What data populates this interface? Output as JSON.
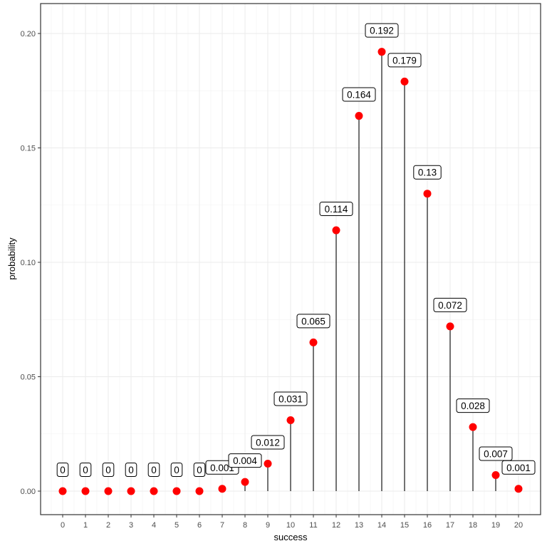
{
  "chart_data": {
    "type": "lollipop",
    "xlabel": "success",
    "ylabel": "probability",
    "x": [
      0,
      1,
      2,
      3,
      4,
      5,
      6,
      7,
      8,
      9,
      10,
      11,
      12,
      13,
      14,
      15,
      16,
      17,
      18,
      19,
      20
    ],
    "values": [
      0,
      0,
      0,
      0,
      0,
      0,
      0,
      0.001,
      0.004,
      0.012,
      0.031,
      0.065,
      0.114,
      0.164,
      0.192,
      0.179,
      0.13,
      0.072,
      0.028,
      0.007,
      0.001
    ],
    "labels": [
      "0",
      "0",
      "0",
      "0",
      "0",
      "0",
      "0",
      "0.001",
      "0.004",
      "0.012",
      "0.031",
      "0.065",
      "0.114",
      "0.164",
      "0.192",
      "0.179",
      "0.13",
      "0.072",
      "0.028",
      "0.007",
      "0.001"
    ],
    "xticks": [
      "0",
      "1",
      "2",
      "3",
      "4",
      "5",
      "6",
      "7",
      "8",
      "9",
      "10",
      "11",
      "12",
      "13",
      "14",
      "15",
      "16",
      "17",
      "18",
      "19",
      "20"
    ],
    "yticks": [
      "0.00",
      "0.05",
      "0.10",
      "0.15",
      "0.20"
    ],
    "ytick_values": [
      0,
      0.05,
      0.1,
      0.15,
      0.2
    ],
    "xlim": [
      -1,
      21
    ],
    "ylim": [
      -0.01,
      0.21
    ],
    "grid": true,
    "point_color": "#ff0000",
    "stem_color": "#000000"
  }
}
